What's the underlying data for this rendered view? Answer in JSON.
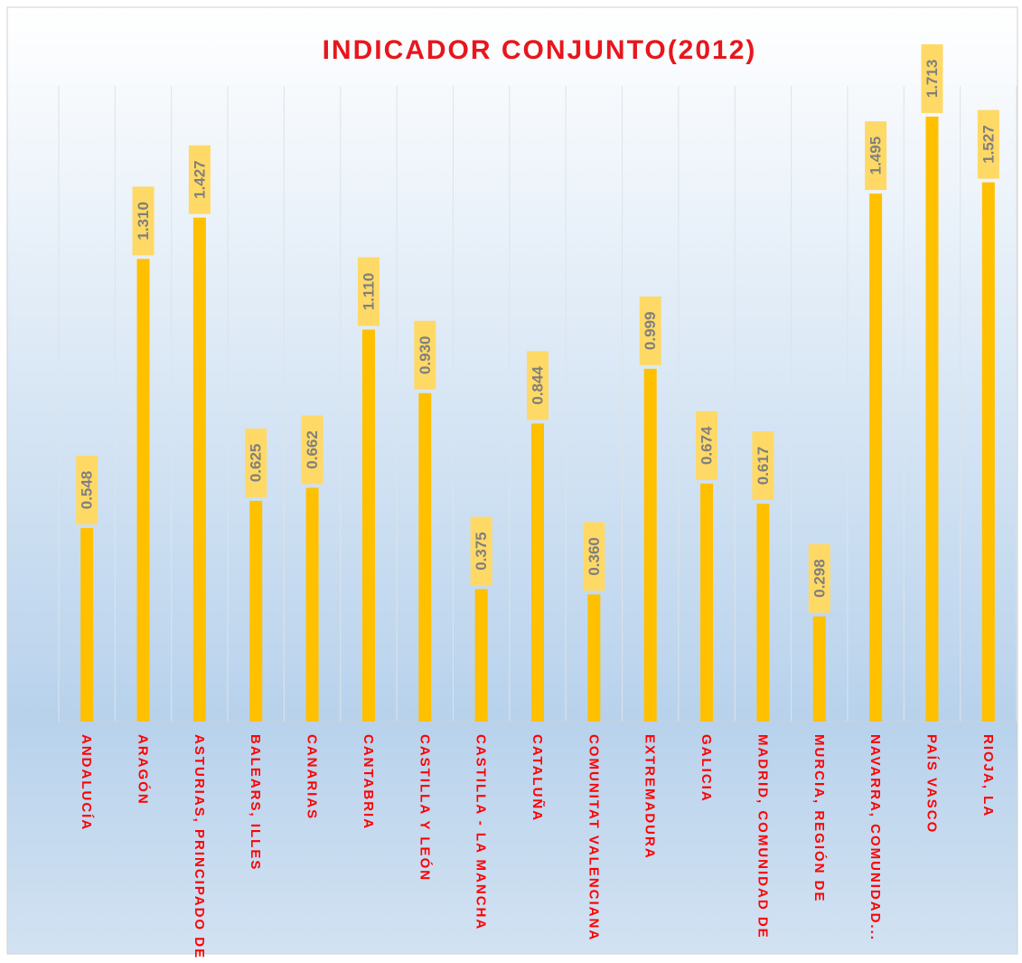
{
  "chart_data": {
    "type": "bar",
    "title": "INDICADOR CONJUNTO(2012)",
    "categories": [
      "ANDALUCÍA",
      "ARAGÓN",
      "ASTURIAS, PRINCIPADO DE",
      "BALEARS, ILLES",
      "CANARIAS",
      "CANTABRIA",
      "CASTILLA Y LEÓN",
      "CASTILLA - LA MANCHA",
      "CATALUÑA",
      "COMUNITAT VALENCIANA",
      "EXTREMADURA",
      "GALICIA",
      "MADRID, COMUNIDAD DE",
      "MURCIA, REGIÓN DE",
      "NAVARRA, COMUNIDAD...",
      "PAÍS VASCO",
      "RIOJA, LA"
    ],
    "values": [
      0.548,
      1.31,
      1.427,
      0.625,
      0.662,
      1.11,
      0.93,
      0.375,
      0.844,
      0.36,
      0.999,
      0.674,
      0.617,
      0.298,
      1.495,
      1.713,
      1.527
    ],
    "value_labels": [
      "0.548",
      "1.310",
      "1.427",
      "0.625",
      "0.662",
      "1.110",
      "0.930",
      "0.375",
      "0.844",
      "0.360",
      "0.999",
      "0.674",
      "0.617",
      "0.298",
      "1.495",
      "1.713",
      "1.527"
    ],
    "color": "#ffc000",
    "label_box_color": "#ffd966",
    "title_color": "#e8161c",
    "category_color": "#ff0000",
    "ylim": [
      0,
      1.8
    ],
    "grid": true
  }
}
